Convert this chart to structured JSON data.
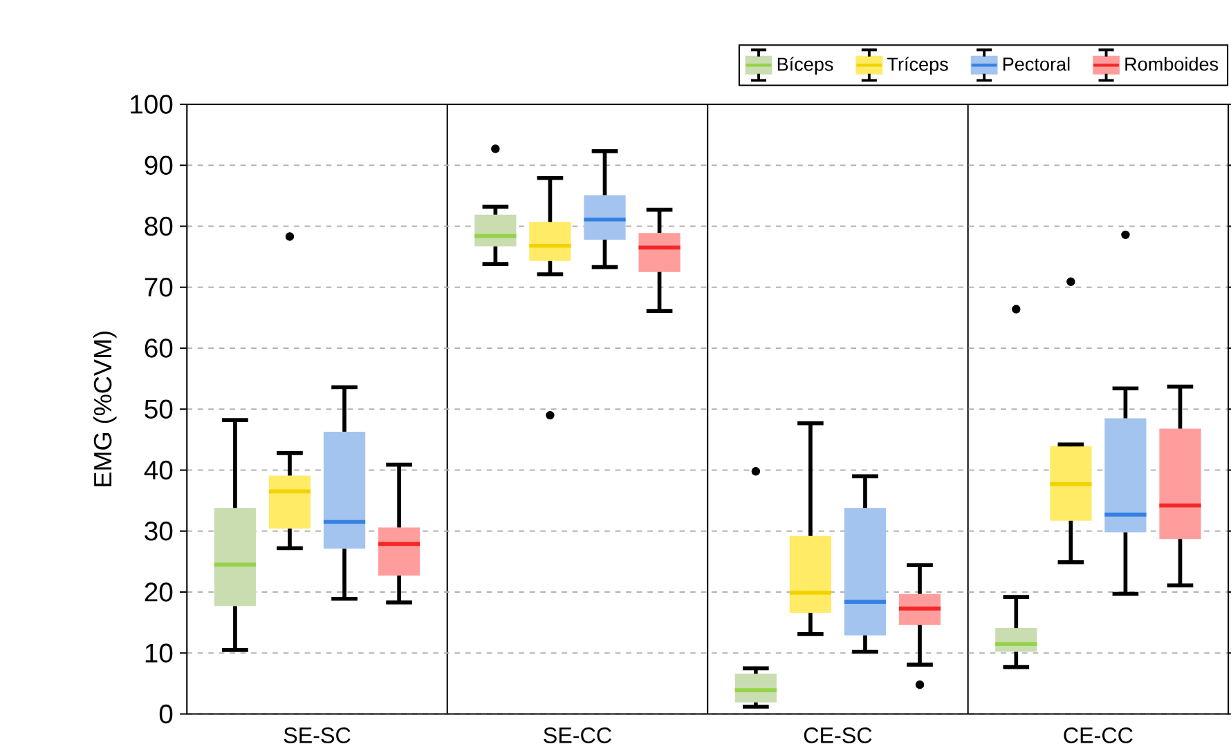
{
  "chart_data": {
    "type": "box",
    "ylabel": "EMG (%CVM)",
    "categories": [
      "SE-SC",
      "SE-CC",
      "CE-SC",
      "CE-CC"
    ],
    "ylim": [
      0,
      100
    ],
    "yticks": [
      0,
      10,
      20,
      30,
      40,
      50,
      60,
      70,
      80,
      90,
      100
    ],
    "grid": "y",
    "legend": "top right",
    "series": [
      {
        "name": "Bíceps",
        "color": "#c9ddb0",
        "boxes": [
          {
            "low": 10.5,
            "q1": 17.7,
            "median": 24.5,
            "q3": 33.8,
            "high": 48.2
          },
          {
            "low": 73.8,
            "q1": 76.7,
            "median": 78.4,
            "q3": 81.9,
            "high": 83.2,
            "outliers": [
              92.7
            ]
          },
          {
            "low": 1.2,
            "q1": 1.9,
            "median": 3.9,
            "q3": 6.6,
            "high": 7.5,
            "outliers": [
              39.8
            ]
          },
          {
            "low": 7.7,
            "q1": 10.2,
            "median": 11.5,
            "q3": 14.1,
            "high": 19.2,
            "outliers": [
              66.4
            ]
          }
        ]
      },
      {
        "name": "Tríceps",
        "color": "#ffeb66",
        "boxes": [
          {
            "low": 27.2,
            "q1": 30.4,
            "median": 36.5,
            "q3": 39.1,
            "high": 42.8,
            "outliers": [
              78.3
            ]
          },
          {
            "low": 72.1,
            "q1": 74.3,
            "median": 76.8,
            "q3": 80.7,
            "high": 87.9,
            "outliers": [
              49.0
            ]
          },
          {
            "low": 13.1,
            "q1": 16.6,
            "median": 19.9,
            "q3": 29.2,
            "high": 47.7
          },
          {
            "low": 24.9,
            "q1": 31.7,
            "median": 37.7,
            "q3": 43.9,
            "high": 44.2,
            "outliers": [
              70.9
            ]
          }
        ]
      },
      {
        "name": "Pectoral",
        "color": "#a3c4ef",
        "boxes": [
          {
            "low": 18.9,
            "q1": 27.1,
            "median": 31.5,
            "q3": 46.3,
            "high": 53.6
          },
          {
            "low": 73.3,
            "q1": 77.8,
            "median": 81.1,
            "q3": 85.1,
            "high": 92.3
          },
          {
            "low": 10.2,
            "q1": 12.9,
            "median": 18.4,
            "q3": 33.8,
            "high": 39.0
          },
          {
            "low": 19.7,
            "q1": 29.8,
            "median": 32.7,
            "q3": 48.5,
            "high": 53.4,
            "outliers": [
              78.6
            ]
          }
        ]
      },
      {
        "name": "Romboides",
        "color": "#ff9d9d",
        "boxes": [
          {
            "low": 18.3,
            "q1": 22.7,
            "median": 27.9,
            "q3": 30.6,
            "high": 40.9
          },
          {
            "low": 66.1,
            "q1": 72.5,
            "median": 76.5,
            "q3": 78.9,
            "high": 82.7
          },
          {
            "low": 8.1,
            "q1": 14.6,
            "median": 17.3,
            "q3": 19.7,
            "high": 24.4,
            "outliers": [
              4.8
            ]
          },
          {
            "low": 21.1,
            "q1": 28.7,
            "median": 34.2,
            "q3": 46.8,
            "high": 53.7
          }
        ]
      }
    ]
  }
}
